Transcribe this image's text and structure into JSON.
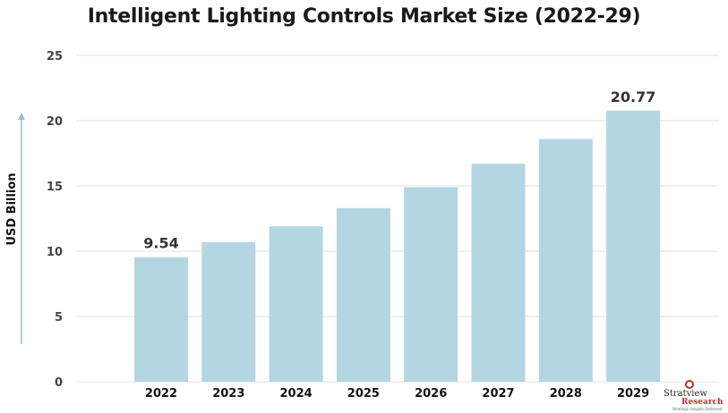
{
  "chart_data": {
    "type": "bar",
    "title": "Intelligent Lighting Controls Market Size (2022-29)",
    "ylabel": "USD Billion",
    "xlabel": "",
    "categories": [
      "2022",
      "2023",
      "2024",
      "2025",
      "2026",
      "2027",
      "2028",
      "2029"
    ],
    "values": [
      9.54,
      10.7,
      11.9,
      13.3,
      14.9,
      16.7,
      18.6,
      20.77
    ],
    "data_labels": {
      "2022": "9.54",
      "2029": "20.77"
    },
    "ylim": [
      0,
      25
    ],
    "yticks": [
      0,
      5,
      10,
      15,
      20,
      25
    ],
    "grid": true,
    "bar_color": "#b3d6e2",
    "grid_color": "#e2e2e2",
    "axis_arrow_color": "#8fc0d0"
  },
  "logo": {
    "line1": "Stratview",
    "line2": "Research",
    "tagline": "Strategic Insights Delivered"
  }
}
